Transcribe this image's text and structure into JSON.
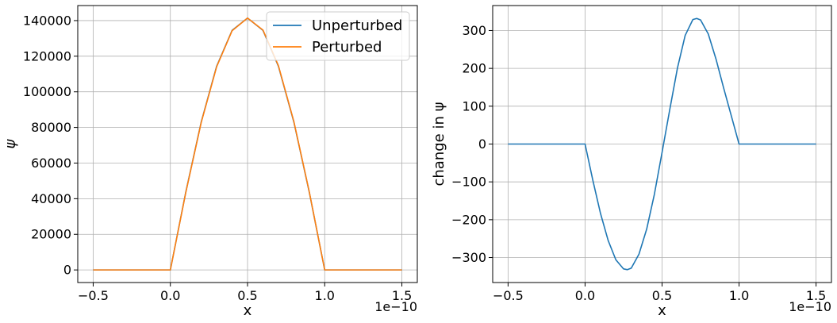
{
  "chart_data": [
    {
      "type": "line",
      "title": "",
      "xlabel": "x",
      "ylabel": "ψ",
      "x_offset_text": "1e−10",
      "xlim": [
        -0.6,
        1.6
      ],
      "ylim": [
        -7070,
        148440
      ],
      "x_ticks": [
        -0.5,
        0.0,
        0.5,
        1.0,
        1.5
      ],
      "x_tick_labels": [
        "−0.5",
        "0.0",
        "0.5",
        "1.0",
        "1.5"
      ],
      "y_ticks": [
        0,
        20000,
        40000,
        60000,
        80000,
        100000,
        120000,
        140000
      ],
      "y_tick_labels": [
        "0",
        "20000",
        "40000",
        "60000",
        "80000",
        "100000",
        "120000",
        "140000"
      ],
      "grid": true,
      "legend_position": "top-right",
      "series": [
        {
          "name": "Unperturbed",
          "color": "#1f77b4",
          "x": [
            -0.5,
            0.0,
            0.1,
            0.2,
            0.3,
            0.4,
            0.5,
            0.6,
            0.7,
            0.8,
            0.9,
            1.0,
            1.5
          ],
          "y": [
            0,
            0,
            43700,
            83100,
            114400,
            134500,
            141400,
            134500,
            114400,
            83100,
            43700,
            0,
            0
          ]
        },
        {
          "name": "Perturbed",
          "color": "#ff7f0e",
          "x": [
            -0.5,
            0.0,
            0.1,
            0.2,
            0.3,
            0.4,
            0.5,
            0.6,
            0.7,
            0.8,
            0.9,
            1.0,
            1.5
          ],
          "y": [
            0,
            0,
            43500,
            82800,
            114100,
            134300,
            141400,
            134700,
            114700,
            83400,
            43900,
            0,
            0
          ]
        }
      ]
    },
    {
      "type": "line",
      "title": "",
      "xlabel": "x",
      "ylabel": "change in ψ",
      "x_offset_text": "1e−10",
      "xlim": [
        -0.6,
        1.6
      ],
      "ylim": [
        -366,
        366
      ],
      "x_ticks": [
        -0.5,
        0.0,
        0.5,
        1.0,
        1.5
      ],
      "x_tick_labels": [
        "−0.5",
        "0.0",
        "0.5",
        "1.0",
        "1.5"
      ],
      "y_ticks": [
        -300,
        -200,
        -100,
        0,
        100,
        200,
        300
      ],
      "y_tick_labels": [
        "−300",
        "−200",
        "−100",
        "0",
        "100",
        "200",
        "300"
      ],
      "grid": true,
      "series": [
        {
          "color": "#1f77b4",
          "x": [
            -0.5,
            0.0,
            0.05,
            0.1,
            0.15,
            0.2,
            0.25,
            0.275,
            0.3,
            0.35,
            0.4,
            0.45,
            0.5,
            0.55,
            0.6,
            0.65,
            0.7,
            0.725,
            0.75,
            0.8,
            0.85,
            0.9,
            0.95,
            1.0,
            1.5
          ],
          "y": [
            0,
            0,
            -95,
            -183,
            -255,
            -306,
            -330,
            -332,
            -328,
            -291,
            -225,
            -133,
            -22,
            91,
            201,
            287,
            329,
            332,
            328,
            291,
            225,
            148,
            74,
            0,
            0
          ]
        }
      ]
    }
  ]
}
